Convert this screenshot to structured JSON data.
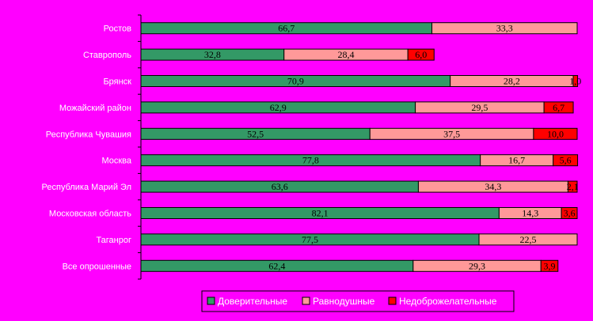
{
  "chart_data": {
    "type": "bar",
    "orientation": "horizontal",
    "stacked": "percent",
    "categories": [
      "Ростов",
      "Ставрополь",
      "Брянск",
      "Можайский район",
      "Республика Чувашия",
      "Москва",
      "Республика Марий Эл",
      "Московская область",
      "Таганрог",
      "Все опрошенные"
    ],
    "series": [
      {
        "name": "Доверительные",
        "color": "#339966",
        "values": [
          66.7,
          32.8,
          70.9,
          62.9,
          52.5,
          77.8,
          63.6,
          82.1,
          77.5,
          62.4
        ]
      },
      {
        "name": "Равнодушные",
        "color": "#ff9999",
        "values": [
          33.3,
          28.4,
          28.2,
          29.5,
          37.5,
          16.7,
          34.3,
          14.3,
          22.5,
          29.3
        ]
      },
      {
        "name": "Недоброжелательные",
        "color": "#ff0000",
        "values": [
          0,
          6.0,
          1.0,
          6.7,
          10.0,
          5.6,
          2.1,
          3.6,
          0,
          3.9
        ]
      }
    ],
    "labels": [
      [
        "66,7",
        "33,3",
        ""
      ],
      [
        "32,8",
        "28,4",
        "6,0"
      ],
      [
        "70,9",
        "28,2",
        "1,0"
      ],
      [
        "62,9",
        "29,5",
        "6,7"
      ],
      [
        "52,5",
        "37,5",
        "10,0"
      ],
      [
        "77,8",
        "16,7",
        "5,6"
      ],
      [
        "63,6",
        "34,3",
        "2,1"
      ],
      [
        "82,1",
        "14,3",
        "3,6"
      ],
      [
        "77,5",
        "22,5",
        ""
      ],
      [
        "62,4",
        "29,3",
        "3,9"
      ]
    ],
    "xlim": [
      0,
      100
    ],
    "grid": false,
    "legend_position": "bottom",
    "title": "",
    "xlabel": "",
    "ylabel": ""
  }
}
